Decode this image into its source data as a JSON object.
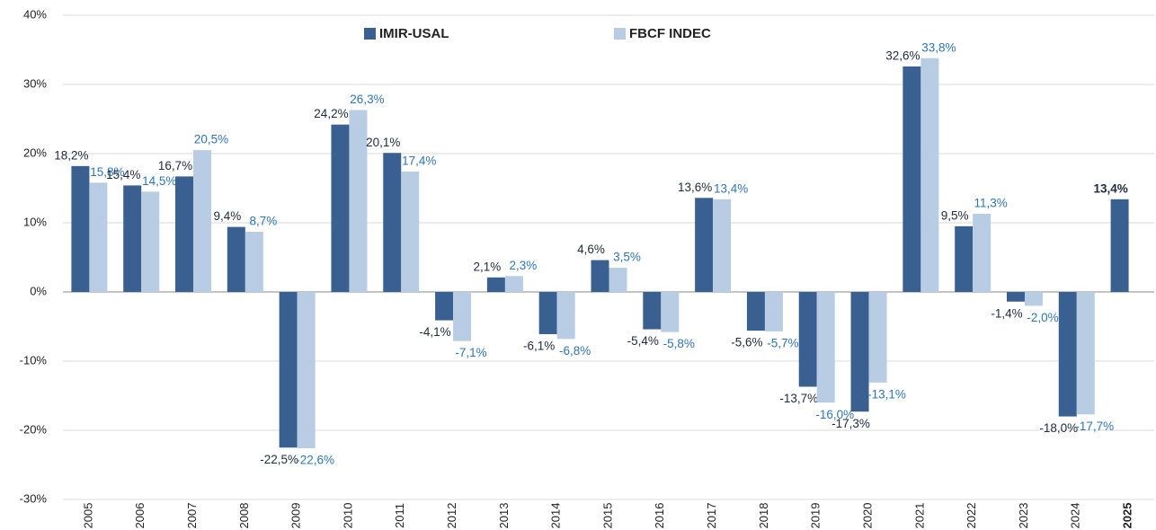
{
  "chart_data": {
    "type": "bar",
    "categories": [
      "2005",
      "2006",
      "2007",
      "2008",
      "2009",
      "2010",
      "2011",
      "2012",
      "2013",
      "2014",
      "2015",
      "2016",
      "2017",
      "2018",
      "2019",
      "2020",
      "2021",
      "2022",
      "2023",
      "2024",
      "2025"
    ],
    "series": [
      {
        "name": "IMIR-USAL",
        "color": "#3a6091",
        "label_color": "#1f2a3c",
        "values": [
          18.2,
          15.4,
          16.7,
          9.4,
          -22.5,
          24.2,
          20.1,
          -4.1,
          2.1,
          -6.1,
          4.6,
          -5.4,
          13.6,
          -5.6,
          -13.7,
          -17.3,
          32.6,
          9.5,
          -1.4,
          -18.0,
          13.4
        ],
        "value_labels": [
          "18,2%",
          "15,4%",
          "16,7%",
          "9,4%",
          "-22,5%",
          "24,2%",
          "20,1%",
          "-4,1%",
          "2,1%",
          "-6,1%",
          "4,6%",
          "-5,4%",
          "13,6%",
          "-5,6%",
          "-13,7%",
          "-17,3%",
          "32,6%",
          "9,5%",
          "-1,4%",
          "-18,0%",
          "13,4%"
        ]
      },
      {
        "name": "FBCF INDEC",
        "color": "#b8cce4",
        "label_color": "#2e75b6",
        "values": [
          15.8,
          14.5,
          20.5,
          8.7,
          -22.6,
          26.3,
          17.4,
          -7.1,
          2.3,
          -6.8,
          3.5,
          -5.8,
          13.4,
          -5.7,
          -16.0,
          -13.1,
          33.8,
          11.3,
          -2.0,
          -17.7,
          null
        ],
        "value_labels": [
          "15,8%",
          "14,5%",
          "20,5%",
          "8,7%",
          "-22,6%",
          "26,3%",
          "17,4%",
          "-7,1%",
          "2,3%",
          "-6,8%",
          "3,5%",
          "-5,8%",
          "13,4%",
          "-5,7%",
          "-16,0%",
          "-13,1%",
          "33,8%",
          "11,3%",
          "-2,0%",
          "-17,7%",
          null
        ]
      }
    ],
    "ylim": [
      -30,
      40
    ],
    "yticks": [
      {
        "value": -30,
        "label": "-30%"
      },
      {
        "value": -20,
        "label": "-20%"
      },
      {
        "value": -10,
        "label": "-10%"
      },
      {
        "value": 0,
        "label": "0%"
      },
      {
        "value": 10,
        "label": "10%"
      },
      {
        "value": 20,
        "label": "20%"
      },
      {
        "value": 30,
        "label": "30%"
      },
      {
        "value": 40,
        "label": "40%"
      }
    ],
    "grid": true
  }
}
